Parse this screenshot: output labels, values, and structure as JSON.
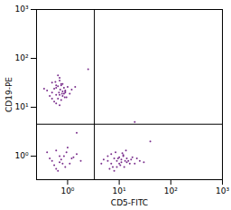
{
  "chart_data": {
    "type": "scatter",
    "x_label": "CD5-FITC",
    "y_label": "CD19-PE",
    "log": true,
    "grid": false,
    "color": "#7a2e8c",
    "marker": "dot",
    "xlim": [
      0.25,
      1000
    ],
    "ylim": [
      0.33,
      1000
    ],
    "xticks": [
      {
        "value": 1,
        "label": "10⁰"
      },
      {
        "value": 10,
        "label": "10¹"
      },
      {
        "value": 100,
        "label": "10²"
      },
      {
        "value": 1000,
        "label": "10³"
      }
    ],
    "yticks": [
      {
        "value": 1,
        "label": "10⁰"
      },
      {
        "value": 10,
        "label": "10¹"
      },
      {
        "value": 100,
        "label": "10²"
      },
      {
        "value": 1000,
        "label": "10³"
      }
    ],
    "gates": {
      "x": 3.3,
      "y": 4.5
    },
    "x": [
      0.5,
      0.6,
      0.7,
      0.8,
      0.9,
      0.65,
      0.75,
      0.55,
      0.85,
      1.0,
      0.45,
      0.7,
      0.6,
      0.8,
      0.95,
      1.2,
      0.5,
      0.65,
      0.75,
      0.9,
      0.4,
      0.7,
      0.6,
      0.85,
      1.1,
      0.55,
      0.75,
      0.8,
      0.35,
      0.7,
      0.6,
      0.9,
      1.4,
      0.5,
      0.65,
      0.78,
      0.72,
      0.58,
      0.88,
      0.68,
      6,
      8,
      10,
      12,
      15,
      9,
      7,
      11,
      14,
      20,
      5,
      8.5,
      10.5,
      13,
      18,
      6.5,
      9.5,
      12,
      16,
      25,
      4.5,
      7.5,
      11,
      13.5,
      8,
      10,
      14,
      22,
      6,
      9,
      12.5,
      17,
      7,
      11.5,
      30,
      0.5,
      0.7,
      0.9,
      1.2,
      0.6,
      0.8,
      1.5,
      0.45,
      0.65,
      1.0,
      0.55,
      0.75,
      1.8,
      0.4,
      0.85,
      1.1,
      0.6,
      0.95,
      0.7,
      1.3,
      2.5,
      20,
      1.5,
      40
    ],
    "y": [
      20,
      25,
      18,
      30,
      22,
      15,
      28,
      24,
      19,
      26,
      17,
      35,
      12,
      21,
      16,
      23,
      32,
      27,
      14,
      20,
      22,
      40,
      18,
      25,
      19,
      13,
      30,
      17,
      24,
      11,
      28,
      21,
      26,
      15,
      45,
      19,
      23,
      33,
      16,
      20,
      0.8,
      0.9,
      0.7,
      1.0,
      0.8,
      0.6,
      1.1,
      0.75,
      0.9,
      0.7,
      0.85,
      1.2,
      0.65,
      0.8,
      0.95,
      0.55,
      0.9,
      1.05,
      0.7,
      0.8,
      0.7,
      0.6,
      0.85,
      1.3,
      0.5,
      0.95,
      0.75,
      0.9,
      1.0,
      0.8,
      0.6,
      0.85,
      0.7,
      1.15,
      0.75,
      0.8,
      1.0,
      0.6,
      0.9,
      1.3,
      0.7,
      1.1,
      0.9,
      0.5,
      1.5,
      0.65,
      0.85,
      0.8,
      1.2,
      1.0,
      0.7,
      0.55,
      1.2,
      0.75,
      0.95,
      60,
      5,
      3,
      2
    ]
  }
}
